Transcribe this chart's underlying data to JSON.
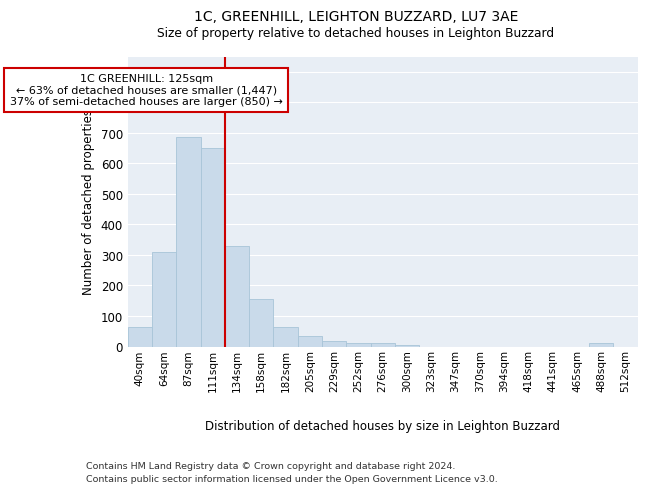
{
  "title1": "1C, GREENHILL, LEIGHTON BUZZARD, LU7 3AE",
  "title2": "Size of property relative to detached houses in Leighton Buzzard",
  "xlabel": "Distribution of detached houses by size in Leighton Buzzard",
  "ylabel": "Number of detached properties",
  "footer1": "Contains HM Land Registry data © Crown copyright and database right 2024.",
  "footer2": "Contains public sector information licensed under the Open Government Licence v3.0.",
  "bin_labels": [
    "40sqm",
    "64sqm",
    "87sqm",
    "111sqm",
    "134sqm",
    "158sqm",
    "182sqm",
    "205sqm",
    "229sqm",
    "252sqm",
    "276sqm",
    "300sqm",
    "323sqm",
    "347sqm",
    "370sqm",
    "394sqm",
    "418sqm",
    "441sqm",
    "465sqm",
    "488sqm",
    "512sqm"
  ],
  "bar_values": [
    63,
    310,
    685,
    650,
    330,
    155,
    65,
    35,
    18,
    12,
    10,
    5,
    0,
    0,
    0,
    0,
    0,
    0,
    0,
    12,
    0
  ],
  "bar_color": "#c9daea",
  "bar_edgecolor": "#a8c4d8",
  "red_line_x": 3.5,
  "annotation_line1": "1C GREENHILL: 125sqm",
  "annotation_line2": "← 63% of detached houses are smaller (1,447)",
  "annotation_line3": "37% of semi-detached houses are larger (850) →",
  "ylim": [
    0,
    950
  ],
  "yticks": [
    0,
    100,
    200,
    300,
    400,
    500,
    600,
    700,
    800,
    900
  ],
  "axes_facecolor": "#e8eef5",
  "grid_color": "#ffffff"
}
